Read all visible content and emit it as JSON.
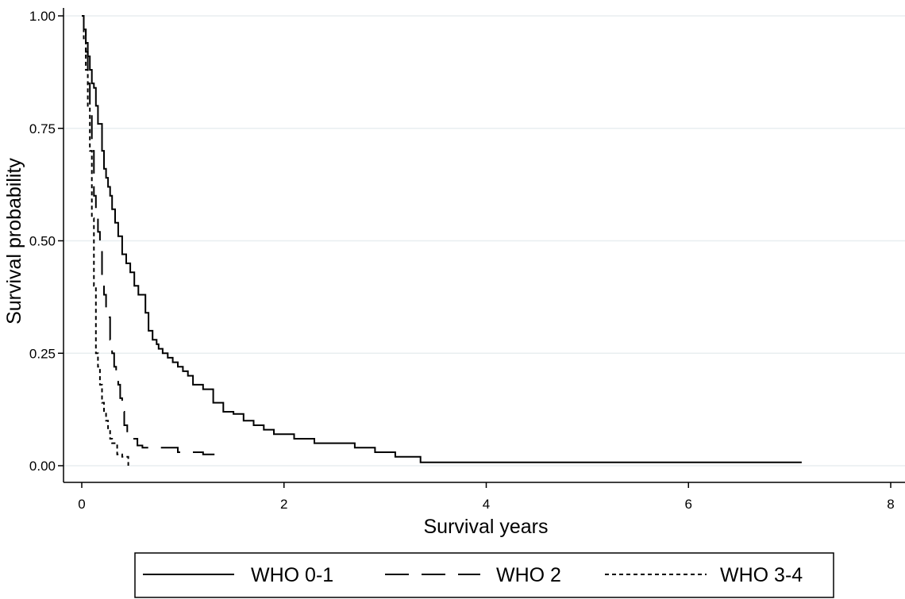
{
  "chart_data": {
    "type": "line",
    "title": "",
    "xlabel": "Survival years",
    "ylabel": "Survival probability",
    "xlim": [
      0,
      8
    ],
    "ylim": [
      0,
      1
    ],
    "x_ticks": [
      0,
      2,
      4,
      6,
      8
    ],
    "x_tick_labels": [
      "0",
      "2",
      "4",
      "6",
      "8"
    ],
    "y_ticks": [
      0,
      0.25,
      0.5,
      0.75,
      1
    ],
    "y_tick_labels": [
      "0.00",
      "0.25",
      "0.50",
      "0.75",
      "1.00"
    ],
    "grid": "horizontal",
    "legend_position": "bottom",
    "colors": {
      "line": "#000000",
      "grid": "#e8eef0",
      "background": "#ffffff"
    },
    "series": [
      {
        "name": "WHO 0-1",
        "line_style": "solid",
        "x": [
          0,
          0.02,
          0.04,
          0.06,
          0.08,
          0.1,
          0.12,
          0.14,
          0.16,
          0.2,
          0.22,
          0.24,
          0.26,
          0.28,
          0.3,
          0.33,
          0.36,
          0.4,
          0.44,
          0.48,
          0.52,
          0.56,
          0.6,
          0.63,
          0.66,
          0.7,
          0.74,
          0.76,
          0.8,
          0.85,
          0.9,
          0.95,
          1.0,
          1.05,
          1.1,
          1.2,
          1.3,
          1.4,
          1.5,
          1.6,
          1.7,
          1.8,
          1.9,
          2.1,
          2.3,
          2.7,
          2.9,
          3.1,
          3.35,
          7.12
        ],
        "y": [
          1.0,
          0.97,
          0.94,
          0.91,
          0.88,
          0.85,
          0.84,
          0.8,
          0.76,
          0.7,
          0.66,
          0.64,
          0.62,
          0.6,
          0.57,
          0.54,
          0.51,
          0.47,
          0.45,
          0.43,
          0.4,
          0.38,
          0.38,
          0.34,
          0.3,
          0.28,
          0.27,
          0.26,
          0.25,
          0.24,
          0.23,
          0.22,
          0.21,
          0.2,
          0.18,
          0.17,
          0.14,
          0.12,
          0.115,
          0.1,
          0.09,
          0.08,
          0.07,
          0.06,
          0.05,
          0.04,
          0.03,
          0.02,
          0.0075,
          0.0075
        ]
      },
      {
        "name": "WHO 2",
        "line_style": "long-dash",
        "x": [
          0,
          0.02,
          0.04,
          0.06,
          0.08,
          0.1,
          0.12,
          0.14,
          0.16,
          0.18,
          0.2,
          0.22,
          0.24,
          0.26,
          0.28,
          0.3,
          0.32,
          0.34,
          0.36,
          0.38,
          0.4,
          0.42,
          0.45,
          0.5,
          0.55,
          0.6,
          0.95,
          1.2,
          1.36
        ],
        "y": [
          1.0,
          0.97,
          0.92,
          0.85,
          0.78,
          0.7,
          0.6,
          0.55,
          0.52,
          0.48,
          0.42,
          0.38,
          0.35,
          0.33,
          0.28,
          0.25,
          0.22,
          0.2,
          0.18,
          0.15,
          0.12,
          0.09,
          0.07,
          0.06,
          0.045,
          0.04,
          0.03,
          0.025,
          0.01
        ]
      },
      {
        "name": "WHO 3-4",
        "line_style": "short-dash",
        "x": [
          0,
          0.02,
          0.04,
          0.06,
          0.08,
          0.1,
          0.12,
          0.14,
          0.16,
          0.18,
          0.2,
          0.22,
          0.24,
          0.26,
          0.28,
          0.3,
          0.35,
          0.4,
          0.46
        ],
        "y": [
          1.0,
          0.95,
          0.88,
          0.8,
          0.7,
          0.55,
          0.4,
          0.25,
          0.22,
          0.18,
          0.14,
          0.12,
          0.1,
          0.08,
          0.06,
          0.05,
          0.025,
          0.02,
          0.0
        ]
      }
    ]
  }
}
